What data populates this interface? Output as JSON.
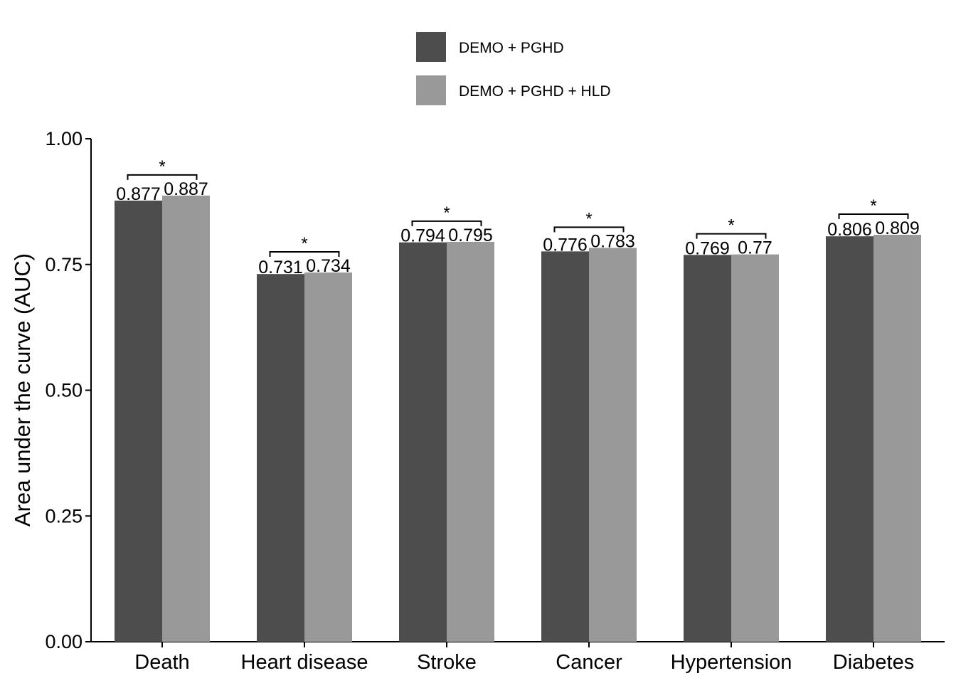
{
  "chart_data": {
    "type": "bar",
    "categories": [
      "Death",
      "Heart disease",
      "Stroke",
      "Cancer",
      "Hypertension",
      "Diabetes"
    ],
    "series": [
      {
        "name": "DEMO + PGHD",
        "color": "#4d4d4d",
        "values": [
          0.877,
          0.731,
          0.794,
          0.776,
          0.769,
          0.806
        ],
        "labels": [
          "0.877",
          "0.731",
          "0.794",
          "0.776",
          "0.769",
          "0.806"
        ]
      },
      {
        "name": "DEMO + PGHD + HLD",
        "color": "#999999",
        "values": [
          0.887,
          0.734,
          0.795,
          0.783,
          0.77,
          0.809
        ],
        "labels": [
          "0.887",
          "0.734",
          "0.795",
          "0.783",
          "0.77",
          "0.809"
        ]
      }
    ],
    "significance": [
      "*",
      "*",
      "*",
      "*",
      "*",
      "*"
    ],
    "xlabel": "",
    "ylabel": "Area under the curve (AUC)",
    "ylim": [
      0,
      1
    ],
    "yticks": [
      0,
      0.25,
      0.5,
      0.75,
      1.0
    ],
    "ytick_labels": [
      "0.00",
      "0.25",
      "0.50",
      "0.75",
      "1.00"
    ],
    "grid": false,
    "legend_position": "top-center"
  }
}
